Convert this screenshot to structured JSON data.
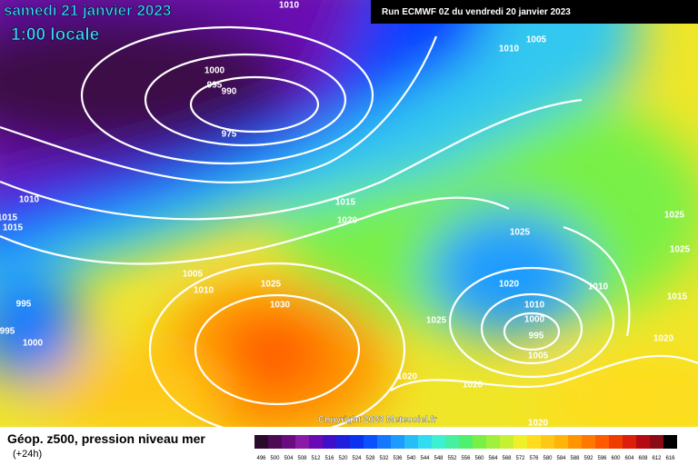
{
  "header": {
    "date": "samedi 21 janvier 2023",
    "time": "1:00 locale",
    "run": "Run ECMWF 0Z du vendredi 20 janvier 2023"
  },
  "copyright": "Copyright 2023 Meteociel.fr",
  "isobars": [
    1010,
    1005,
    1010,
    1000,
    995,
    990,
    975,
    1010,
    1015,
    1015,
    1015,
    1020,
    1025,
    1025,
    1025,
    1005,
    1010,
    1025,
    1030,
    995,
    995,
    1000,
    1020,
    1010,
    1015,
    1010,
    1000,
    995,
    1025,
    1005,
    1020,
    1020,
    1020,
    1020
  ],
  "footer": {
    "title": "Géop. z500, pression niveau mer",
    "subtitle": "(+24h)"
  },
  "scale": {
    "labels": [
      496,
      500,
      504,
      508,
      512,
      516,
      520,
      524,
      528,
      532,
      536,
      540,
      544,
      548,
      552,
      556,
      560,
      564,
      568,
      572,
      576,
      580,
      584,
      588,
      592,
      596,
      600,
      604,
      608,
      612,
      616
    ],
    "colors": [
      "#2b0b2b",
      "#4b0b55",
      "#6b0b80",
      "#8a1aa8",
      "#6a0ab4",
      "#4010c8",
      "#2020dc",
      "#0a32f0",
      "#0a50ff",
      "#1478ff",
      "#1e9bff",
      "#28bef5",
      "#32dcf0",
      "#3cf0d2",
      "#46f0a0",
      "#50f06e",
      "#78f046",
      "#a0f03c",
      "#c8f032",
      "#f0f028",
      "#ffdc1e",
      "#ffc814",
      "#ffb40a",
      "#ff9600",
      "#ff7800",
      "#ff5a00",
      "#f03c00",
      "#dc1e0a",
      "#b40a14",
      "#8c0a14",
      "#000000"
    ]
  }
}
